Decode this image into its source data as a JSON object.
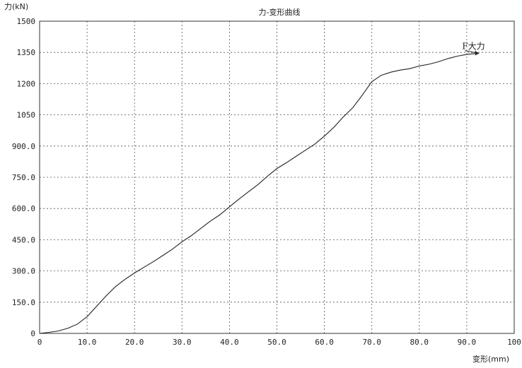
{
  "chart_data": {
    "type": "line",
    "title": "力-变形曲线",
    "xlabel": "变形(mm)",
    "ylabel": "力(kN)",
    "xlim": [
      0,
      100
    ],
    "ylim": [
      0,
      1500
    ],
    "grid": true,
    "x_ticks": [
      0,
      10,
      20,
      30,
      40,
      50,
      60,
      70,
      80,
      90,
      100
    ],
    "x_tick_labels": [
      "0",
      "10.0",
      "20.0",
      "30.0",
      "40.0",
      "50.0",
      "60.0",
      "70.0",
      "80.0",
      "90.0",
      "100"
    ],
    "y_ticks": [
      0,
      150,
      300,
      450,
      600,
      750,
      900,
      1050,
      1200,
      1350,
      1500
    ],
    "y_tick_labels": [
      "0",
      "150.0",
      "300.0",
      "450.0",
      "600.0",
      "750.0",
      "900.0",
      "1050",
      "1200",
      "1350",
      "1500"
    ],
    "series": [
      {
        "x": [
          0,
          2,
          4,
          6,
          8,
          10,
          12,
          14,
          16,
          18,
          20,
          22,
          24,
          26,
          28,
          30,
          32,
          34,
          36,
          38,
          40,
          42,
          44,
          46,
          48,
          50,
          52,
          54,
          56,
          58,
          60,
          62,
          64,
          66,
          68,
          70,
          72,
          74,
          76,
          78,
          80,
          82,
          84,
          86,
          88,
          90,
          92
        ],
        "y": [
          0,
          5,
          12,
          25,
          45,
          80,
          130,
          180,
          225,
          260,
          290,
          318,
          345,
          375,
          405,
          440,
          470,
          505,
          540,
          570,
          608,
          645,
          680,
          715,
          755,
          792,
          820,
          850,
          880,
          910,
          948,
          990,
          1040,
          1085,
          1145,
          1210,
          1240,
          1255,
          1265,
          1272,
          1285,
          1293,
          1305,
          1320,
          1332,
          1340,
          1345
        ]
      }
    ],
    "annotation": {
      "text": "F大力",
      "x": 92,
      "y": 1345
    }
  }
}
